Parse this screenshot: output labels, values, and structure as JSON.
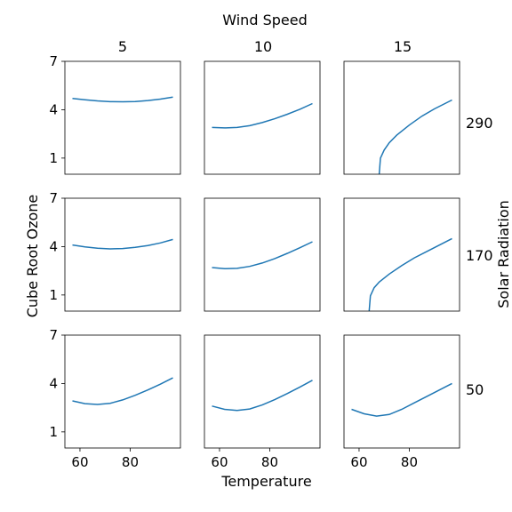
{
  "chart_data": {
    "type": "line",
    "title": "Wind Speed",
    "xlabel": "Temperature",
    "ylabel": "Cube Root Ozone",
    "row_label": "Solar Radiation",
    "column_labels": [
      "5",
      "10",
      "15"
    ],
    "row_values": [
      "290",
      "170",
      "50"
    ],
    "xlim": [
      54,
      100
    ],
    "ylim": [
      0,
      7
    ],
    "x_ticks": [
      60,
      80
    ],
    "y_ticks": [
      1,
      4,
      7
    ],
    "grid": false,
    "line_color": "#1f77b4",
    "panels": [
      {
        "row": 0,
        "col": 0,
        "x": [
          57,
          62,
          67,
          72,
          77,
          82,
          87,
          92,
          97
        ],
        "y": [
          4.7,
          4.62,
          4.55,
          4.5,
          4.49,
          4.51,
          4.57,
          4.66,
          4.78
        ]
      },
      {
        "row": 0,
        "col": 1,
        "x": [
          57,
          62,
          67,
          72,
          77,
          82,
          87,
          92,
          97
        ],
        "y": [
          2.9,
          2.87,
          2.9,
          3.01,
          3.2,
          3.44,
          3.72,
          4.03,
          4.38
        ]
      },
      {
        "row": 0,
        "col": 2,
        "x": [
          68,
          68.5,
          70,
          72,
          75,
          80,
          85,
          90,
          97
        ],
        "y": [
          0,
          1.0,
          1.5,
          1.95,
          2.42,
          3.05,
          3.6,
          4.05,
          4.6
        ]
      },
      {
        "row": 1,
        "col": 0,
        "x": [
          57,
          62,
          67,
          72,
          77,
          82,
          87,
          92,
          97
        ],
        "y": [
          4.1,
          3.98,
          3.9,
          3.86,
          3.88,
          3.95,
          4.07,
          4.23,
          4.44
        ]
      },
      {
        "row": 1,
        "col": 1,
        "x": [
          57,
          62,
          67,
          72,
          77,
          82,
          87,
          92,
          97
        ],
        "y": [
          2.7,
          2.63,
          2.65,
          2.77,
          2.98,
          3.26,
          3.58,
          3.93,
          4.3
        ]
      },
      {
        "row": 1,
        "col": 2,
        "x": [
          64,
          64.5,
          66,
          68,
          72,
          77,
          82,
          88,
          97
        ],
        "y": [
          0,
          0.95,
          1.45,
          1.8,
          2.3,
          2.83,
          3.3,
          3.78,
          4.5
        ]
      },
      {
        "row": 2,
        "col": 0,
        "x": [
          57,
          62,
          67,
          72,
          77,
          82,
          87,
          92,
          97
        ],
        "y": [
          2.92,
          2.75,
          2.7,
          2.77,
          2.98,
          3.27,
          3.6,
          3.96,
          4.35
        ]
      },
      {
        "row": 2,
        "col": 1,
        "x": [
          57,
          62,
          67,
          72,
          77,
          82,
          87,
          92,
          97
        ],
        "y": [
          2.6,
          2.4,
          2.33,
          2.42,
          2.67,
          3.0,
          3.38,
          3.78,
          4.2
        ]
      },
      {
        "row": 2,
        "col": 2,
        "x": [
          57,
          62,
          67,
          72,
          77,
          82,
          87,
          92,
          97
        ],
        "y": [
          2.4,
          2.12,
          1.98,
          2.08,
          2.4,
          2.8,
          3.2,
          3.6,
          4.0
        ]
      }
    ]
  }
}
